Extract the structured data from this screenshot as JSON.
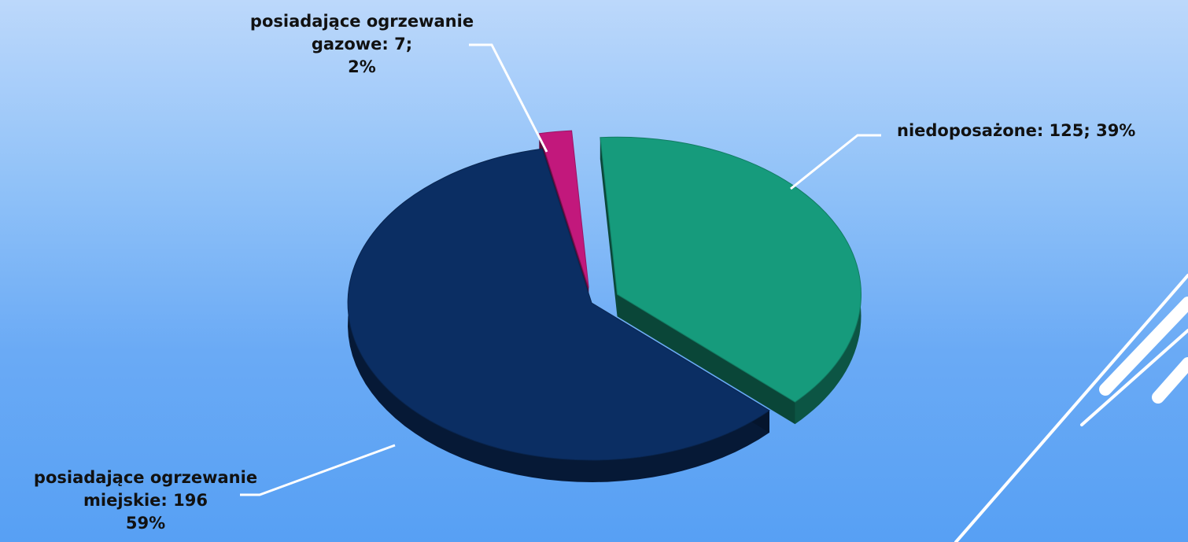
{
  "chart_data": {
    "type": "pie",
    "style": "3d-exploded",
    "slices": [
      {
        "name": "niedoposażone",
        "value": 125,
        "percent": 39,
        "color": "#169b7c",
        "label_lines": [
          "niedoposażone: 125; 39%"
        ]
      },
      {
        "name": "posiadające ogrzewanie miejskie",
        "value": 196,
        "percent": 59,
        "color": "#0b2e63",
        "label_lines": [
          "posiadające ogrzewanie",
          "miejskie: 196",
          "59%"
        ]
      },
      {
        "name": "posiadające ogrzewanie gazowe",
        "value": 7,
        "percent": 2,
        "color": "#c2187c",
        "label_lines": [
          "posiadające ogrzewanie",
          "gazowe: 7;",
          "2%"
        ]
      }
    ],
    "legend": false,
    "colors": {
      "niedoposażone": "#169b7c",
      "miejskie": "#0b2e63",
      "gazowe": "#c2187c",
      "leader_lines": "#ffffff"
    }
  }
}
